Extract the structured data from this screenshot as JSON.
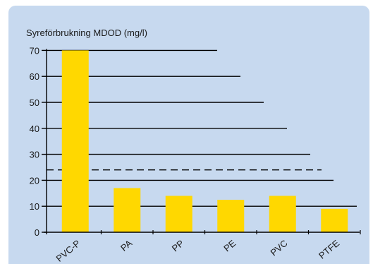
{
  "chart_data": {
    "type": "bar",
    "ylabel": "Syreförbrukning MDOD (mg/l)",
    "categories": [
      "PVC-P",
      "PA",
      "PP",
      "PE",
      "PVC",
      "PTFE"
    ],
    "values": [
      70,
      17,
      14,
      12.5,
      14,
      9
    ],
    "yticks": [
      0,
      10,
      20,
      30,
      40,
      50,
      60,
      70
    ],
    "ylim": [
      0,
      72
    ],
    "reference_line": {
      "value": 24,
      "style": "dashed"
    },
    "grid": "staggered horizontal lines",
    "bar_color": "#ffd800",
    "background_color": "#c7d9ef",
    "axis_color": "#000000"
  }
}
